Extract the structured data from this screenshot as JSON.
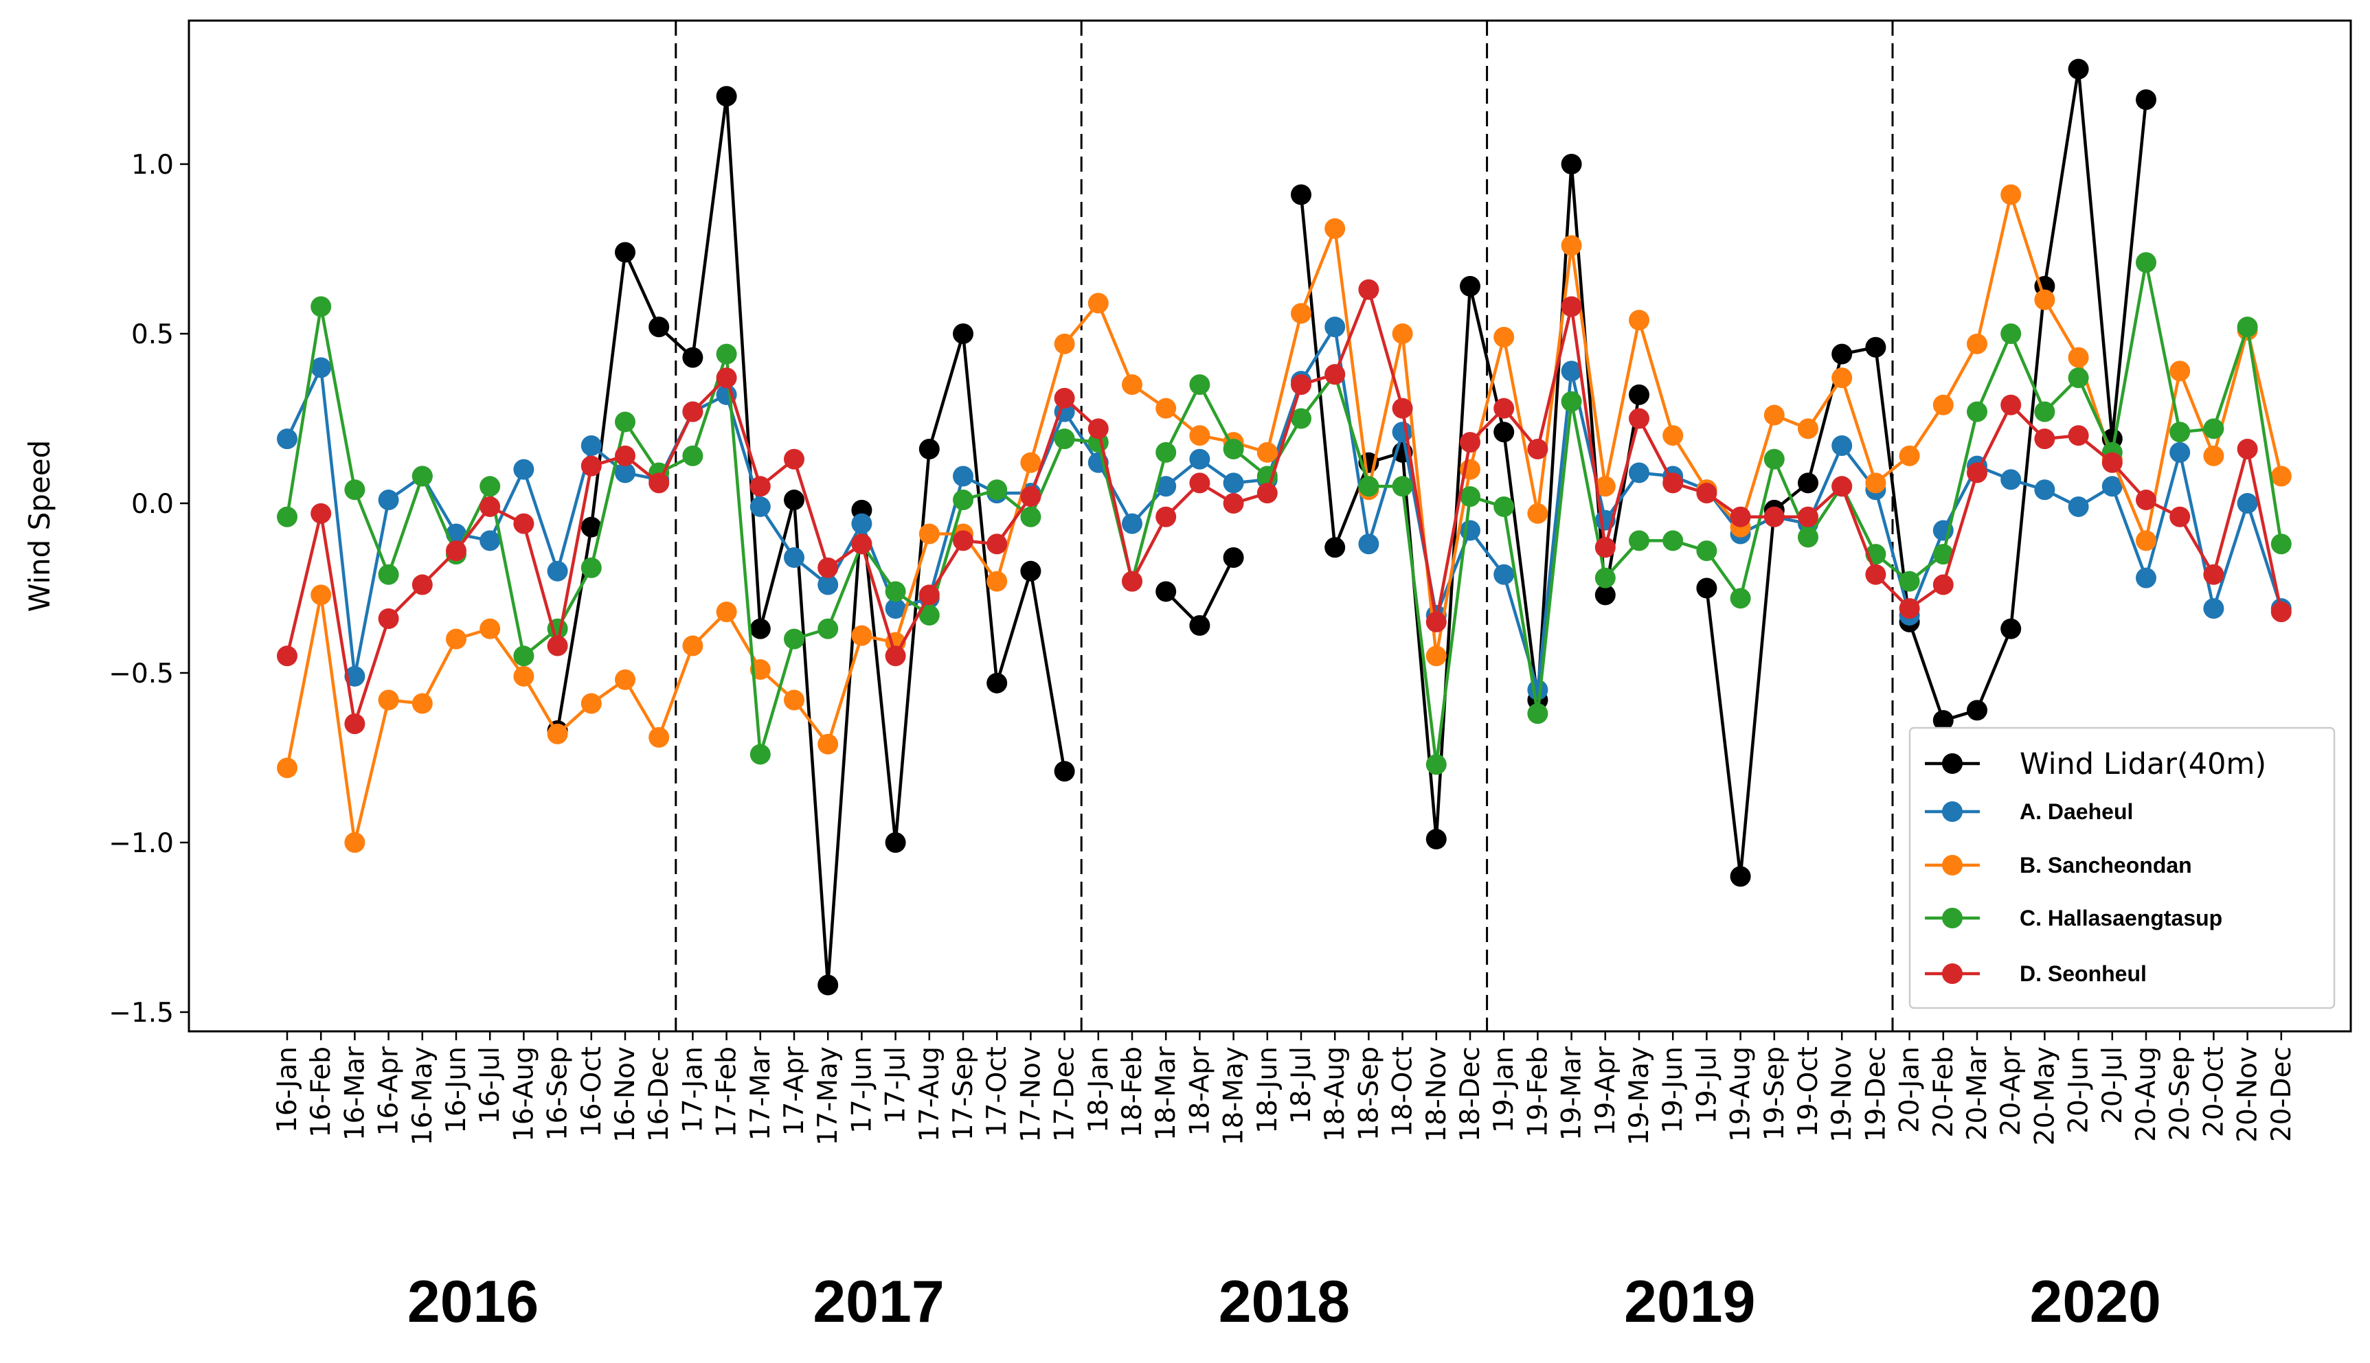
{
  "chart_data": {
    "type": "line",
    "title": "",
    "xlabel": "",
    "ylabel": "Wind Speed",
    "ylim": [
      -1.55,
      1.42
    ],
    "yticks": [
      {
        "value": 1.0,
        "label": "1.0"
      },
      {
        "value": 0.5,
        "label": "0.5"
      },
      {
        "value": 0.0,
        "label": "0.0"
      },
      {
        "value": -0.5,
        "label": "−0.5"
      },
      {
        "value": -1.0,
        "label": "−1.0"
      },
      {
        "value": -1.5,
        "label": "−1.5"
      }
    ],
    "categories": [
      "16-Jan",
      "16-Feb",
      "16-Mar",
      "16-Apr",
      "16-May",
      "16-Jun",
      "16-Jul",
      "16-Aug",
      "16-Sep",
      "16-Oct",
      "16-Nov",
      "16-Dec",
      "17-Jan",
      "17-Feb",
      "17-Mar",
      "17-Apr",
      "17-May",
      "17-Jun",
      "17-Jul",
      "17-Aug",
      "17-Sep",
      "17-Oct",
      "17-Nov",
      "17-Dec",
      "18-Jan",
      "18-Feb",
      "18-Mar",
      "18-Apr",
      "18-May",
      "18-Jun",
      "18-Jul",
      "18-Aug",
      "18-Sep",
      "18-Oct",
      "18-Nov",
      "18-Dec",
      "19-Jan",
      "19-Feb",
      "19-Mar",
      "19-Apr",
      "19-May",
      "19-Jun",
      "19-Jul",
      "19-Aug",
      "19-Sep",
      "19-Oct",
      "19-Nov",
      "19-Dec",
      "20-Jan",
      "20-Feb",
      "20-Mar",
      "20-Apr",
      "20-May",
      "20-Jun",
      "20-Jul",
      "20-Aug",
      "20-Sep",
      "20-Oct",
      "20-Nov",
      "20-Dec"
    ],
    "year_groups": [
      {
        "label": "2016",
        "start": 0,
        "end": 11
      },
      {
        "label": "2017",
        "start": 12,
        "end": 23
      },
      {
        "label": "2018",
        "start": 24,
        "end": 35
      },
      {
        "label": "2019",
        "start": 36,
        "end": 47
      },
      {
        "label": "2020",
        "start": 48,
        "end": 59
      }
    ],
    "year_separators_after": [
      "16-Dec",
      "17-Dec",
      "18-Dec",
      "19-Dec"
    ],
    "legend_position": "lower right",
    "grid": false,
    "series": [
      {
        "name": "Wind Lidar(40m)",
        "color": "#000000",
        "values": [
          null,
          null,
          null,
          null,
          null,
          null,
          null,
          null,
          -0.67,
          -0.07,
          0.74,
          0.52,
          0.43,
          1.2,
          -0.37,
          0.01,
          -1.42,
          -0.02,
          -1.0,
          0.16,
          0.5,
          -0.53,
          -0.2,
          -0.79,
          null,
          null,
          -0.26,
          -0.36,
          -0.16,
          null,
          0.91,
          -0.13,
          0.12,
          0.15,
          -0.99,
          0.64,
          0.21,
          -0.58,
          1.0,
          -0.27,
          0.32,
          null,
          -0.25,
          -1.1,
          -0.02,
          0.06,
          0.44,
          0.46,
          -0.35,
          -0.64,
          -0.61,
          -0.37,
          0.64,
          1.28,
          0.19,
          1.19,
          null,
          null,
          null,
          null
        ]
      },
      {
        "name": "A. Daeheul",
        "color": "#1f77b4",
        "values": [
          0.19,
          0.4,
          -0.51,
          0.01,
          0.08,
          -0.09,
          -0.11,
          0.1,
          -0.2,
          0.17,
          0.09,
          0.07,
          0.27,
          0.32,
          -0.01,
          -0.16,
          -0.24,
          -0.06,
          -0.31,
          -0.28,
          0.08,
          0.03,
          0.03,
          0.27,
          0.12,
          -0.06,
          0.05,
          0.13,
          0.06,
          0.07,
          0.36,
          0.52,
          -0.12,
          0.21,
          -0.33,
          -0.08,
          -0.21,
          -0.55,
          0.39,
          -0.05,
          0.09,
          0.08,
          0.04,
          -0.09,
          -0.04,
          -0.06,
          0.17,
          0.04,
          -0.33,
          -0.08,
          0.11,
          0.07,
          0.04,
          -0.01,
          0.05,
          -0.22,
          0.15,
          -0.31,
          0.0,
          -0.31
        ]
      },
      {
        "name": "B. Sancheondan",
        "color": "#ff7f0e",
        "values": [
          -0.78,
          -0.27,
          -1.0,
          -0.58,
          -0.59,
          -0.4,
          -0.37,
          -0.51,
          -0.68,
          -0.59,
          -0.52,
          -0.69,
          -0.42,
          -0.32,
          -0.49,
          -0.58,
          -0.71,
          -0.39,
          -0.41,
          -0.09,
          -0.09,
          -0.23,
          0.12,
          0.47,
          0.59,
          0.35,
          0.28,
          0.2,
          0.18,
          0.15,
          0.56,
          0.81,
          0.04,
          0.5,
          -0.45,
          0.1,
          0.49,
          -0.03,
          0.76,
          0.05,
          0.54,
          0.2,
          0.04,
          -0.07,
          0.26,
          0.22,
          0.37,
          0.06,
          0.14,
          0.29,
          0.47,
          0.91,
          0.6,
          0.43,
          0.13,
          -0.11,
          0.39,
          0.14,
          0.51,
          0.08
        ]
      },
      {
        "name": "C. Hallasaengtasup",
        "color": "#2ca02c",
        "values": [
          -0.04,
          0.58,
          0.04,
          -0.21,
          0.08,
          -0.15,
          0.05,
          -0.45,
          -0.37,
          -0.19,
          0.24,
          0.09,
          0.14,
          0.44,
          -0.74,
          -0.4,
          -0.37,
          -0.12,
          -0.26,
          -0.33,
          0.01,
          0.04,
          -0.04,
          0.19,
          0.18,
          -0.23,
          0.15,
          0.35,
          0.16,
          0.08,
          0.25,
          0.38,
          0.05,
          0.05,
          -0.77,
          0.02,
          -0.01,
          -0.62,
          0.3,
          -0.22,
          -0.11,
          -0.11,
          -0.14,
          -0.28,
          0.13,
          -0.1,
          0.05,
          -0.15,
          -0.23,
          -0.15,
          0.27,
          0.5,
          0.27,
          0.37,
          0.15,
          0.71,
          0.21,
          0.22,
          0.52,
          -0.12
        ]
      },
      {
        "name": "D. Seonheul",
        "color": "#d62728",
        "values": [
          -0.45,
          -0.03,
          -0.65,
          -0.34,
          -0.24,
          -0.14,
          -0.01,
          -0.06,
          -0.42,
          0.11,
          0.14,
          0.06,
          0.27,
          0.37,
          0.05,
          0.13,
          -0.19,
          -0.12,
          -0.45,
          -0.27,
          -0.11,
          -0.12,
          0.02,
          0.31,
          0.22,
          -0.23,
          -0.04,
          0.06,
          0.0,
          0.03,
          0.35,
          0.38,
          0.63,
          0.28,
          -0.35,
          0.18,
          0.28,
          0.16,
          0.58,
          -0.13,
          0.25,
          0.06,
          0.03,
          -0.04,
          -0.04,
          -0.04,
          0.05,
          -0.21,
          -0.31,
          -0.24,
          0.09,
          0.29,
          0.19,
          0.2,
          0.12,
          0.01,
          -0.04,
          -0.21,
          0.16,
          -0.32
        ]
      }
    ]
  }
}
